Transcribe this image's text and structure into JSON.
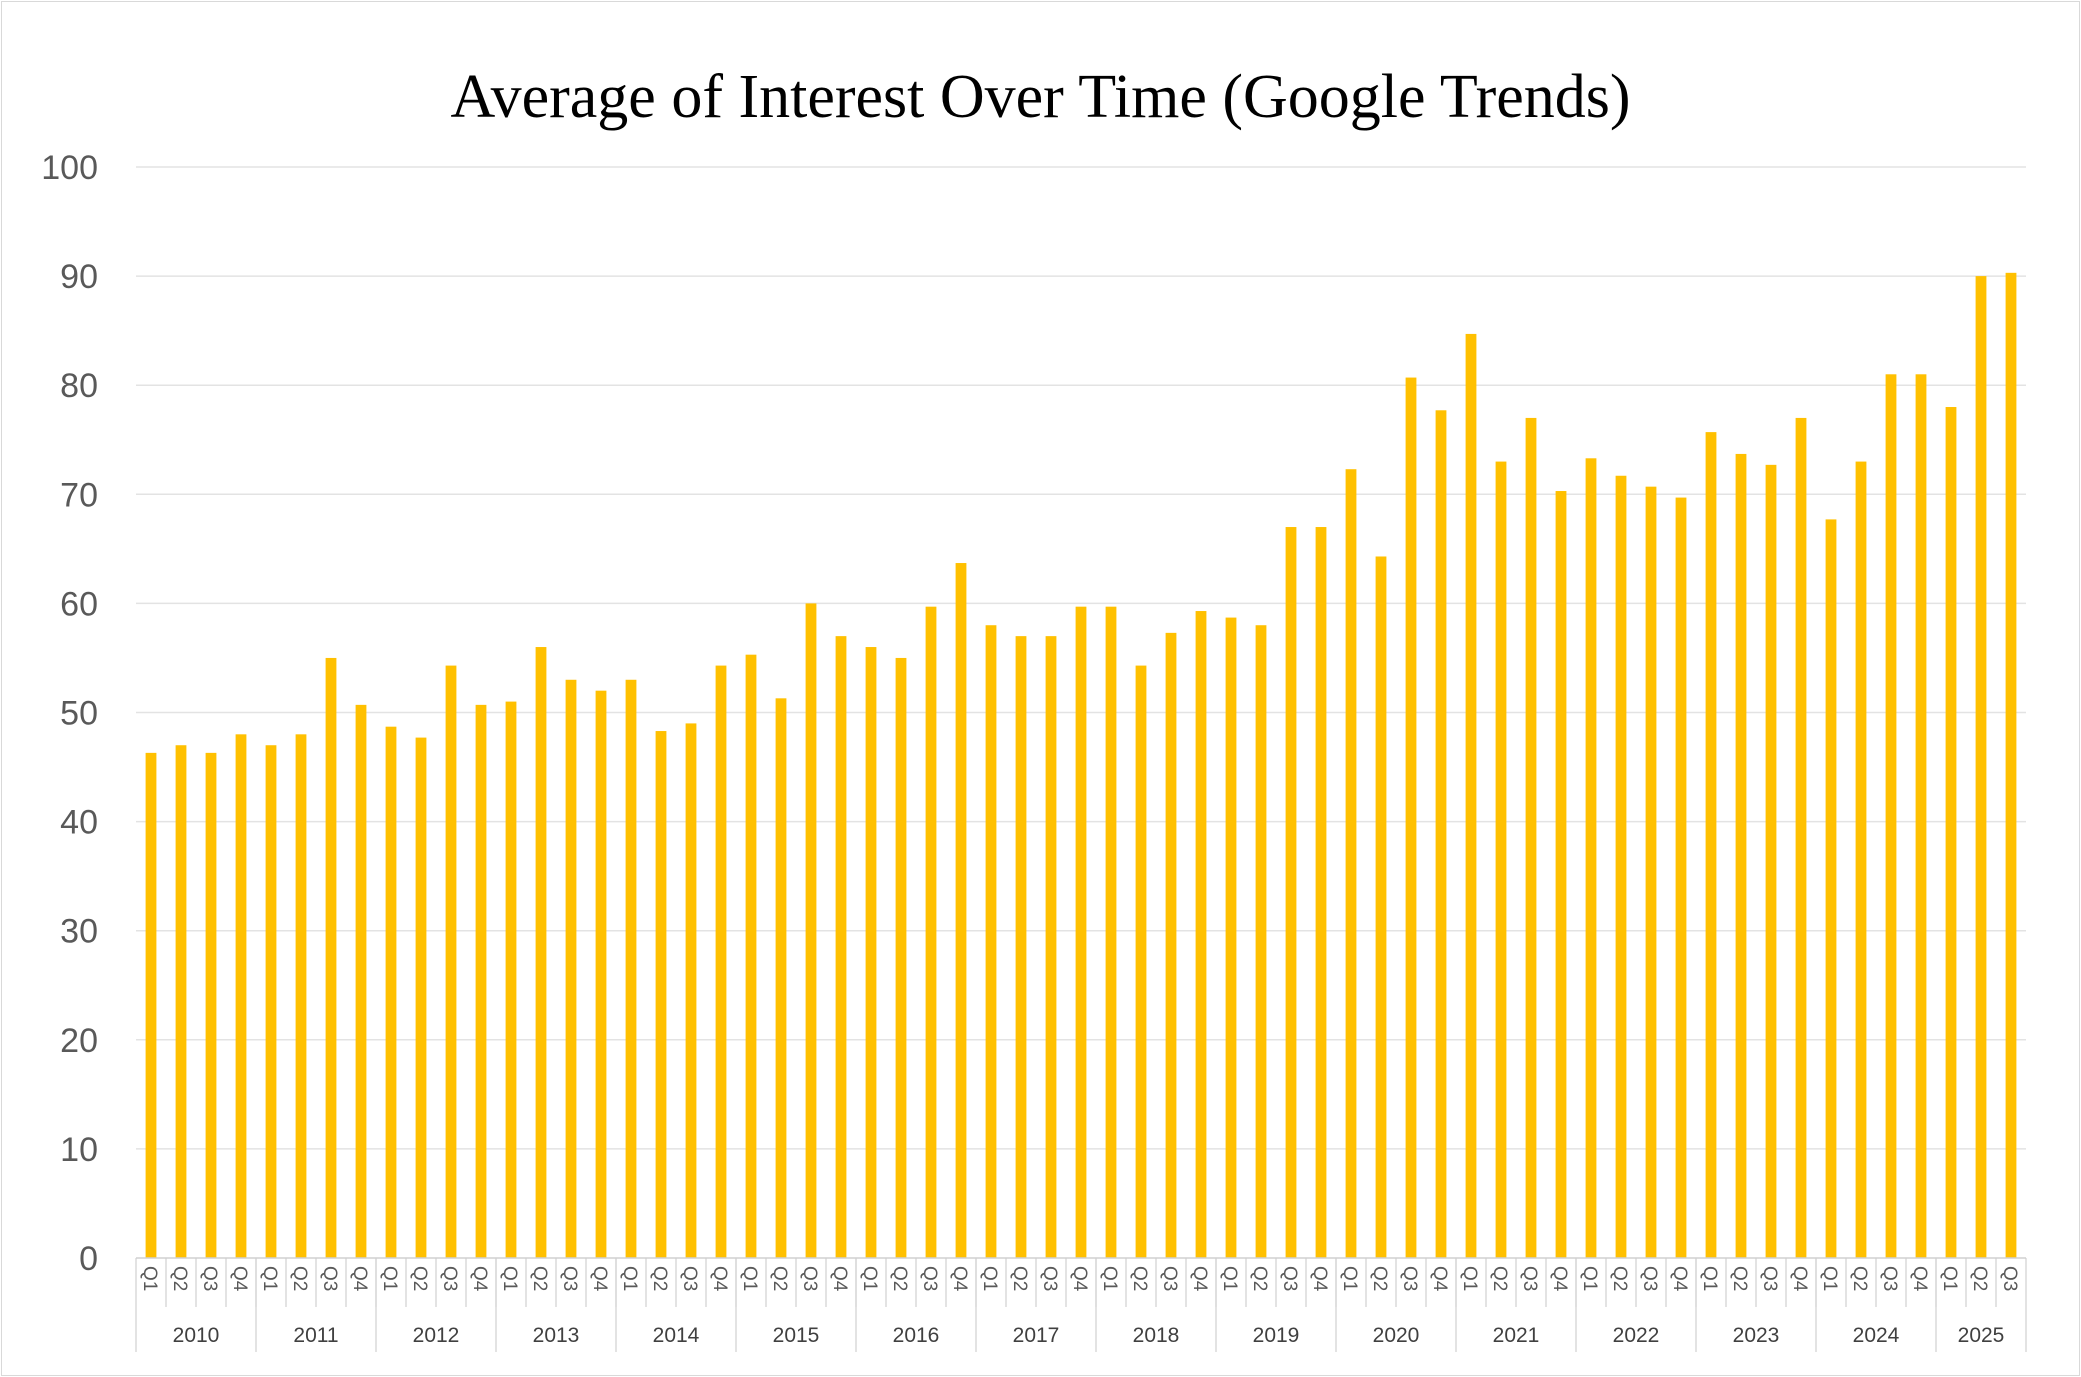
{
  "chart_data": {
    "type": "bar",
    "title": "Average of Interest Over Time (Google Trends)",
    "xlabel": "",
    "ylabel": "",
    "ylim": [
      0,
      100
    ],
    "yticks": [
      "0",
      "10",
      "20",
      "30",
      "40",
      "50",
      "60",
      "70",
      "80",
      "90",
      "100"
    ],
    "grid": true,
    "legend": "none",
    "bar_color": "#FFC000",
    "years": [
      "2010",
      "2011",
      "2012",
      "2013",
      "2014",
      "2015",
      "2016",
      "2017",
      "2018",
      "2019",
      "2020",
      "2021",
      "2022",
      "2023",
      "2024",
      "2025"
    ],
    "categories": [
      "Q1",
      "Q2",
      "Q3",
      "Q4",
      "Q1",
      "Q2",
      "Q3",
      "Q4",
      "Q1",
      "Q2",
      "Q3",
      "Q4",
      "Q1",
      "Q2",
      "Q3",
      "Q4",
      "Q1",
      "Q2",
      "Q3",
      "Q4",
      "Q1",
      "Q2",
      "Q3",
      "Q4",
      "Q1",
      "Q2",
      "Q3",
      "Q4",
      "Q1",
      "Q2",
      "Q3",
      "Q4",
      "Q1",
      "Q2",
      "Q3",
      "Q4",
      "Q1",
      "Q2",
      "Q3",
      "Q4",
      "Q1",
      "Q2",
      "Q3",
      "Q4",
      "Q1",
      "Q2",
      "Q3",
      "Q4",
      "Q1",
      "Q2",
      "Q3",
      "Q4",
      "Q1",
      "Q2",
      "Q3",
      "Q4",
      "Q1",
      "Q2",
      "Q3",
      "Q4",
      "Q1",
      "Q2",
      "Q3"
    ],
    "values": [
      46.3,
      47.0,
      46.3,
      48.0,
      47.0,
      48.0,
      55.0,
      50.7,
      48.7,
      47.7,
      54.3,
      50.7,
      51.0,
      56.0,
      53.0,
      52.0,
      53.0,
      48.3,
      49.0,
      54.3,
      55.3,
      51.3,
      60.0,
      57.0,
      56.0,
      55.0,
      59.7,
      63.7,
      58.0,
      57.0,
      57.0,
      59.7,
      59.7,
      54.3,
      57.3,
      59.3,
      58.7,
      58.0,
      67.0,
      67.0,
      72.3,
      64.3,
      80.7,
      77.7,
      84.7,
      73.0,
      77.0,
      70.3,
      73.3,
      71.7,
      70.7,
      69.7,
      75.7,
      73.7,
      72.7,
      77.0,
      67.7,
      73.0,
      81.0,
      81.0,
      78.0,
      90.0,
      90.3
    ]
  }
}
